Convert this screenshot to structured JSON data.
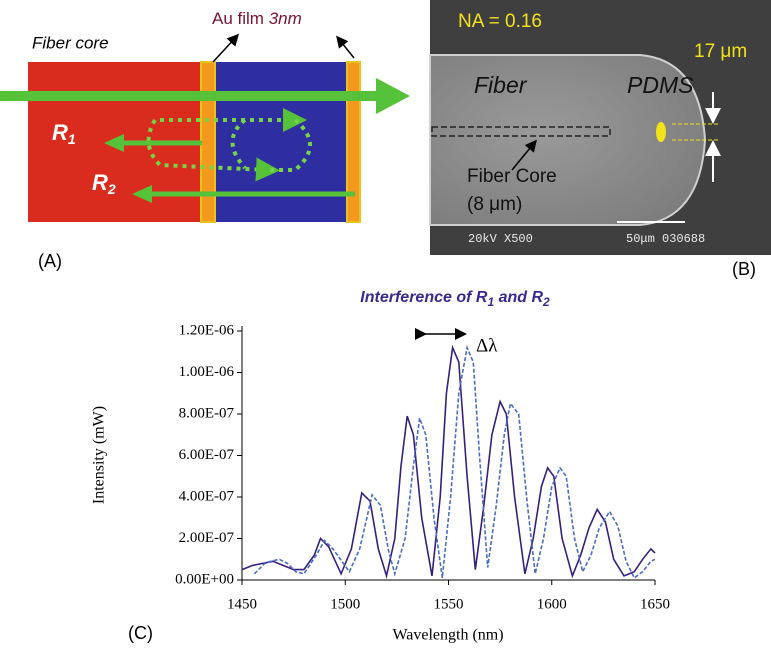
{
  "panel_a": {
    "fiber_core": "Fiber core",
    "au_film": [
      "Au film ",
      "3nm"
    ],
    "r1": [
      "R",
      "1"
    ],
    "r2": [
      "R",
      "2"
    ],
    "label": "(A)"
  },
  "panel_b": {
    "na": "NA = 0.16",
    "size": "17 μm",
    "fiber": "Fiber",
    "pdms": "PDMS",
    "fiber_core": "Fiber Core",
    "core_size": "(8 μm)",
    "sem_left": "20kV X500",
    "sem_right": "50μm 030688",
    "label": "(B)"
  },
  "chart_data": {
    "type": "line",
    "title": [
      "Interference of R",
      "1",
      " and R",
      "2"
    ],
    "panel_label": "(C)",
    "x_label": "Wavelength (nm)",
    "y_label": "Intensity (mW)",
    "annotation": "Δλ",
    "xlim": [
      1450,
      1650
    ],
    "xticks": [
      1450,
      1500,
      1550,
      1600,
      1650
    ],
    "ylim": [
      0,
      1.2e-06
    ],
    "yticks": [
      {
        "value": 0,
        "label": "0.00E+00"
      },
      {
        "value": 2e-07,
        "label": "2.00E-07"
      },
      {
        "value": 4e-07,
        "label": "4.00E-07"
      },
      {
        "value": 6e-07,
        "label": "6.00E-07"
      },
      {
        "value": 8e-07,
        "label": "8.00E-07"
      },
      {
        "value": 1e-06,
        "label": "1.00E-06"
      },
      {
        "value": 1.2e-06,
        "label": "1.20E-06"
      }
    ],
    "series": [
      {
        "color": "#35207f",
        "dash": false,
        "x": [
          1450,
          1455,
          1460,
          1465,
          1470,
          1475,
          1480,
          1485,
          1488,
          1492,
          1498,
          1503,
          1508,
          1512,
          1516,
          1520,
          1524,
          1527,
          1530,
          1533,
          1537,
          1542,
          1546,
          1549,
          1552,
          1555,
          1559,
          1563,
          1567,
          1571,
          1575,
          1578,
          1582,
          1587,
          1591,
          1595,
          1598,
          1601,
          1605,
          1610,
          1614,
          1618,
          1622,
          1626,
          1630,
          1635,
          1640,
          1644,
          1648,
          1650
        ],
        "values": [
          5e-08,
          7e-08,
          8e-08,
          9e-08,
          7e-08,
          5e-08,
          5e-08,
          1.2e-07,
          2e-07,
          1.6e-07,
          3e-08,
          1.5e-07,
          4.2e-07,
          3.8e-07,
          1.5e-07,
          2e-08,
          2e-07,
          5.5e-07,
          7.9e-07,
          7e-07,
          3e-07,
          2e-08,
          4e-07,
          9e-07,
          1.12e-06,
          1.05e-06,
          5e-07,
          5e-08,
          3.5e-07,
          7e-07,
          8.6e-07,
          8e-07,
          4e-07,
          3e-08,
          2e-07,
          4.5e-07,
          5.4e-07,
          5e-07,
          2e-07,
          2e-08,
          1.2e-07,
          2.5e-07,
          3.4e-07,
          2.8e-07,
          1e-07,
          2e-08,
          4e-08,
          1e-07,
          1.5e-07,
          1.3e-07
        ]
      },
      {
        "color": "#4a6cc4",
        "dash": true,
        "x": [
          1456,
          1461,
          1464,
          1468,
          1472,
          1476,
          1480,
          1486,
          1490,
          1494,
          1502,
          1507,
          1513,
          1517,
          1521,
          1524,
          1529,
          1533,
          1536,
          1539,
          1543,
          1547,
          1551,
          1555,
          1559,
          1562,
          1565,
          1569,
          1573,
          1577,
          1580,
          1584,
          1588,
          1592,
          1596,
          1600,
          1604,
          1607,
          1611,
          1615,
          1619,
          1623,
          1628,
          1632,
          1636,
          1640,
          1644,
          1648,
          1650
        ],
        "values": [
          3e-08,
          8e-08,
          9e-08,
          1e-07,
          8e-08,
          4e-08,
          3e-08,
          1.2e-07,
          1.9e-07,
          1.5e-07,
          4e-08,
          1.5e-07,
          4.1e-07,
          3.6e-07,
          1.4e-07,
          3e-08,
          2e-07,
          5.5e-07,
          7.8e-07,
          7e-07,
          3e-07,
          1e-08,
          4e-07,
          9e-07,
          1.12e-06,
          1.05e-06,
          6e-07,
          6e-08,
          3.5e-07,
          7e-07,
          8.5e-07,
          8e-07,
          3.8e-07,
          3e-08,
          2e-07,
          4.5e-07,
          5.4e-07,
          5e-07,
          2e-07,
          4e-08,
          1.2e-07,
          2.5e-07,
          3.3e-07,
          2.6e-07,
          9e-08,
          1e-08,
          4e-08,
          9e-08,
          1e-07
        ]
      }
    ]
  }
}
